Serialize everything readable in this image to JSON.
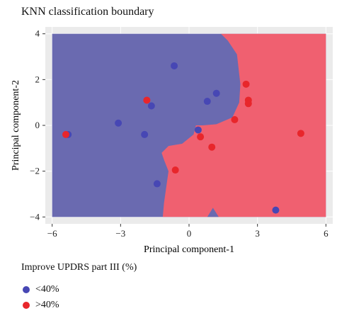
{
  "chart_data": {
    "type": "scatter",
    "title": "KNN classification boundary",
    "xlabel": "Principal component-1",
    "ylabel": "Principal component-2",
    "xlim": [
      -6.3,
      6.3
    ],
    "ylim": [
      -4.3,
      4.3
    ],
    "xticks": [
      -6,
      -3,
      0,
      3,
      6
    ],
    "yticks": [
      -4,
      -2,
      0,
      2,
      4
    ],
    "grid": true,
    "legend_position": "bottom-left",
    "legend_title": "Improve UPDRS part III (%)",
    "classes": [
      {
        "label": "<40%",
        "region_color": "#6a6ab0",
        "point_color": "#4747b4"
      },
      {
        "label": ">40%",
        "region_color": "#f06070",
        "point_color": "#e8262b"
      }
    ],
    "region_domain": {
      "x": [
        -6,
        6
      ],
      "y": [
        -4,
        4
      ]
    },
    "boundary": [
      [
        -0.3,
        4
      ],
      [
        -0.15,
        3.2
      ],
      [
        -0.25,
        2.3
      ],
      [
        -0.3,
        1.3
      ],
      [
        -0.15,
        0.5
      ],
      [
        0.4,
        0.3
      ],
      [
        0.9,
        0.2
      ],
      [
        1.2,
        0.25
      ],
      [
        1.55,
        0.4
      ],
      [
        1.9,
        0.75
      ],
      [
        2.05,
        1.2
      ],
      [
        2.1,
        1.9
      ],
      [
        2.05,
        2.7
      ],
      [
        1.95,
        3.3
      ],
      [
        1.65,
        3.7
      ],
      [
        1.4,
        4
      ]
    ],
    "red_region": [
      [
        1.4,
        4
      ],
      [
        6,
        4
      ],
      [
        6,
        -4
      ],
      [
        -1.15,
        -4
      ],
      [
        -1.1,
        -3.4
      ],
      [
        -0.9,
        -2.0
      ],
      [
        -1.1,
        -1.5
      ],
      [
        -1.2,
        -1.2
      ],
      [
        -0.9,
        -0.9
      ],
      [
        -0.3,
        -0.8
      ],
      [
        0.2,
        -0.4
      ],
      [
        0.3,
        0.0
      ],
      [
        0.6,
        0.0
      ],
      [
        1.2,
        0.05
      ],
      [
        1.9,
        0.35
      ],
      [
        2.2,
        1.0
      ],
      [
        2.25,
        1.8
      ],
      [
        2.1,
        3.1
      ],
      [
        1.7,
        3.7
      ]
    ],
    "blue_notch": [
      [
        0.8,
        -4
      ],
      [
        1.05,
        -3.6
      ],
      [
        1.3,
        -4
      ]
    ],
    "points": [
      {
        "x": -5.3,
        "y": -0.4,
        "class": 0
      },
      {
        "x": -5.4,
        "y": -0.4,
        "class": 1
      },
      {
        "x": -3.1,
        "y": 0.1,
        "class": 0
      },
      {
        "x": -1.95,
        "y": -0.4,
        "class": 0
      },
      {
        "x": -1.85,
        "y": 1.1,
        "class": 1
      },
      {
        "x": -1.65,
        "y": 0.85,
        "class": 0
      },
      {
        "x": -0.65,
        "y": 2.6,
        "class": 0
      },
      {
        "x": -1.4,
        "y": -2.55,
        "class": 0
      },
      {
        "x": -0.6,
        "y": -1.95,
        "class": 1
      },
      {
        "x": 0.4,
        "y": -0.2,
        "class": 0
      },
      {
        "x": 0.5,
        "y": -0.5,
        "class": 1
      },
      {
        "x": 1.0,
        "y": -0.95,
        "class": 1
      },
      {
        "x": 0.8,
        "y": 1.05,
        "class": 0
      },
      {
        "x": 1.2,
        "y": 1.4,
        "class": 0
      },
      {
        "x": 2.0,
        "y": 0.25,
        "class": 1
      },
      {
        "x": 2.5,
        "y": 1.8,
        "class": 1
      },
      {
        "x": 2.6,
        "y": 1.1,
        "class": 1
      },
      {
        "x": 2.6,
        "y": 0.95,
        "class": 1
      },
      {
        "x": 4.9,
        "y": -0.35,
        "class": 1
      },
      {
        "x": 3.8,
        "y": -3.7,
        "class": 0
      }
    ]
  }
}
